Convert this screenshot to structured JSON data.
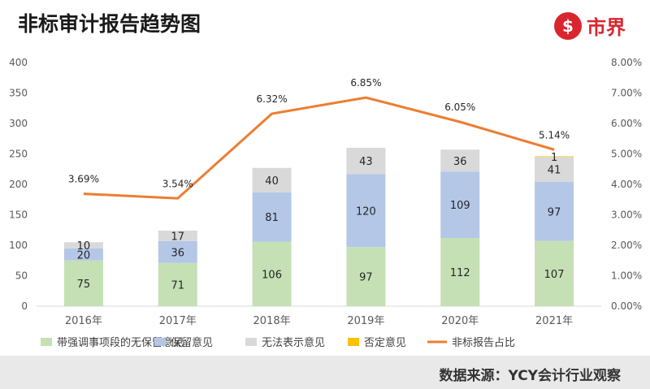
{
  "header": {
    "title": "非标审计报告趋势图",
    "logo_text": "市界"
  },
  "footer": {
    "source": "数据来源：YCY会计行业观察"
  },
  "chart_data": {
    "type": "bar",
    "stacked": true,
    "categories": [
      "2016年",
      "2017年",
      "2018年",
      "2019年",
      "2020年",
      "2021年"
    ],
    "series": [
      {
        "name": "带强调事项段的无保留意见",
        "values": [
          75,
          71,
          106,
          97,
          112,
          107
        ],
        "color": "#c5e0b4"
      },
      {
        "name": "保留意见",
        "values": [
          20,
          36,
          81,
          120,
          109,
          97
        ],
        "color": "#b4c7e7"
      },
      {
        "name": "无法表示意见",
        "values": [
          10,
          17,
          40,
          43,
          36,
          41
        ],
        "color": "#d9d9d9"
      },
      {
        "name": "否定意见",
        "values": [
          0,
          0,
          0,
          0,
          0,
          1
        ],
        "color": "#ffc000"
      }
    ],
    "line_series": {
      "name": "非标报告占比",
      "values": [
        3.69,
        3.54,
        6.32,
        6.85,
        6.05,
        5.14
      ],
      "labels": [
        "3.69%",
        "3.54%",
        "6.32%",
        "6.85%",
        "6.05%",
        "5.14%"
      ],
      "color": "#ed7d31"
    },
    "y_left": {
      "min": 0,
      "max": 400,
      "ticks": [
        "0",
        "50",
        "100",
        "150",
        "200",
        "250",
        "300",
        "350",
        "400"
      ]
    },
    "y_right": {
      "min": 0,
      "max": 8,
      "ticks": [
        "0.00%",
        "1.00%",
        "2.00%",
        "3.00%",
        "4.00%",
        "5.00%",
        "6.00%",
        "7.00%",
        "8.00%"
      ]
    },
    "legend_position": "bottom",
    "grid": false
  }
}
